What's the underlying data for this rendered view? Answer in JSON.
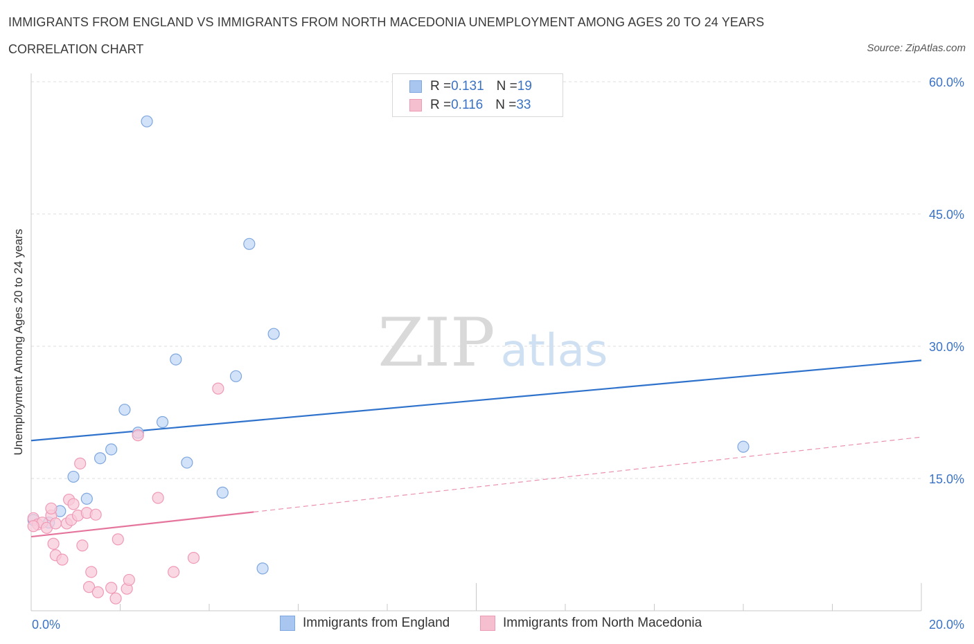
{
  "header": {
    "title": "IMMIGRANTS FROM ENGLAND VS IMMIGRANTS FROM NORTH MACEDONIA UNEMPLOYMENT AMONG AGES 20 TO 24 YEARS",
    "subtitle": "CORRELATION CHART",
    "source": "Source: ZipAtlas.com"
  },
  "watermark": {
    "zip": "ZIP",
    "atlas": "atlas"
  },
  "legend": {
    "rows": [
      {
        "r_label": "R = ",
        "r_value": "0.131",
        "n_label": "N = ",
        "n_value": "19",
        "color": "#a9c6f0",
        "border": "#7ea6de"
      },
      {
        "r_label": "R = ",
        "r_value": "0.116",
        "n_label": "N = ",
        "n_value": "33",
        "color": "#f6bfd0",
        "border": "#ef9ab5"
      }
    ]
  },
  "bottom_legend": {
    "england": "Immigrants from England",
    "north_macedonia": "Immigrants from North Macedonia"
  },
  "chart_data": {
    "type": "scatter",
    "title": "IMMIGRANTS FROM ENGLAND VS IMMIGRANTS FROM NORTH MACEDONIA UNEMPLOYMENT AMONG AGES 20 TO 24 YEARS",
    "xlabel": "",
    "ylabel": "Unemployment Among Ages 20 to 24 years",
    "xlim": [
      0,
      20
    ],
    "ylim": [
      0,
      60
    ],
    "x_tick_labels": [
      "0.0%",
      "20.0%"
    ],
    "y_ticks": [
      15,
      30,
      45,
      60
    ],
    "y_tick_labels": [
      "15.0%",
      "30.0%",
      "45.0%",
      "60.0%"
    ],
    "grid": true,
    "series": [
      {
        "name": "Immigrants from England",
        "color": "#7ea6de",
        "fill": "#c3d8f5",
        "line_color": "#2f72cc",
        "points": [
          [
            0.05,
            10.3
          ],
          [
            0.4,
            10.0
          ],
          [
            0.65,
            11.3
          ],
          [
            0.95,
            15.2
          ],
          [
            1.25,
            12.7
          ],
          [
            1.55,
            17.3
          ],
          [
            1.8,
            18.3
          ],
          [
            2.1,
            22.8
          ],
          [
            2.4,
            20.2
          ],
          [
            2.6,
            55.5
          ],
          [
            2.95,
            21.4
          ],
          [
            3.25,
            28.5
          ],
          [
            3.5,
            16.8
          ],
          [
            4.3,
            13.4
          ],
          [
            4.6,
            26.6
          ],
          [
            4.9,
            41.6
          ],
          [
            5.45,
            31.4
          ],
          [
            5.2,
            4.8
          ],
          [
            16.0,
            18.6
          ]
        ],
        "trend": {
          "x1": 0,
          "y1": 19.3,
          "x2": 20,
          "y2": 28.4,
          "style": "solid"
        }
      },
      {
        "name": "Immigrants from North Macedonia",
        "color": "#ef9ab5",
        "fill": "#f8cbd9",
        "line_color": "#e5749c",
        "points": [
          [
            0.05,
            10.5
          ],
          [
            0.15,
            9.8
          ],
          [
            0.25,
            10.0
          ],
          [
            0.35,
            9.4
          ],
          [
            0.45,
            10.8
          ],
          [
            0.45,
            11.6
          ],
          [
            0.5,
            7.6
          ],
          [
            0.55,
            6.3
          ],
          [
            0.7,
            5.8
          ],
          [
            0.8,
            9.9
          ],
          [
            0.85,
            12.6
          ],
          [
            0.9,
            10.3
          ],
          [
            0.95,
            12.1
          ],
          [
            1.05,
            10.8
          ],
          [
            1.1,
            16.7
          ],
          [
            1.15,
            7.4
          ],
          [
            1.25,
            11.1
          ],
          [
            1.3,
            2.7
          ],
          [
            1.35,
            4.4
          ],
          [
            1.45,
            10.9
          ],
          [
            1.5,
            2.1
          ],
          [
            1.8,
            2.6
          ],
          [
            1.9,
            1.4
          ],
          [
            1.95,
            8.1
          ],
          [
            2.15,
            2.5
          ],
          [
            2.2,
            3.5
          ],
          [
            2.4,
            19.9
          ],
          [
            2.85,
            12.8
          ],
          [
            3.2,
            4.4
          ],
          [
            3.65,
            6.0
          ],
          [
            4.2,
            25.2
          ],
          [
            0.05,
            9.6
          ],
          [
            0.55,
            9.9
          ]
        ],
        "trend": {
          "x1": 0,
          "y1": 8.4,
          "x2": 5.0,
          "y2": 11.2,
          "style": "solid",
          "extended_to_x": 20,
          "extended_y": 19.7,
          "extended_style": "dashed"
        }
      }
    ]
  }
}
